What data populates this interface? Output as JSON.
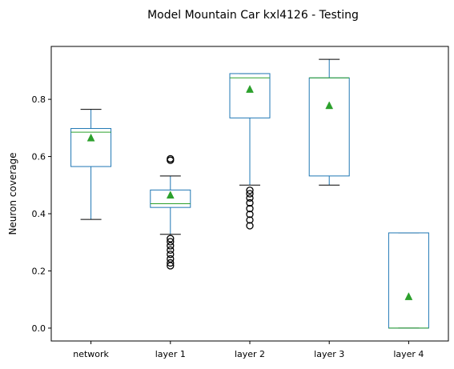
{
  "chart_data": {
    "type": "box",
    "title": "Model Mountain Car kxl4126 - Testing",
    "xlabel": "",
    "ylabel": "Neuron coverage",
    "ylim": [
      -0.045,
      0.985
    ],
    "yticks": [
      0.0,
      0.2,
      0.4,
      0.6,
      0.8
    ],
    "ytick_labels": [
      "0.0",
      "0.2",
      "0.4",
      "0.6",
      "0.8"
    ],
    "grid": false,
    "legend": "none",
    "categories": [
      "network",
      "layer 1",
      "layer 2",
      "layer 3",
      "layer 4"
    ],
    "boxes": [
      {
        "category": "network",
        "whisker_low": 0.38,
        "q1": 0.565,
        "median": 0.685,
        "q3": 0.698,
        "whisker_high": 0.765,
        "mean": 0.665,
        "outliers": []
      },
      {
        "category": "layer 1",
        "whisker_low": 0.328,
        "q1": 0.422,
        "median": 0.435,
        "q3": 0.483,
        "whisker_high": 0.532,
        "mean": 0.465,
        "outliers": [
          0.218,
          0.228,
          0.242,
          0.258,
          0.273,
          0.288,
          0.302,
          0.313,
          0.587,
          0.592
        ]
      },
      {
        "category": "layer 2",
        "whisker_low": 0.5,
        "q1": 0.735,
        "median": 0.875,
        "q3": 0.89,
        "whisker_high": 0.89,
        "mean": 0.835,
        "outliers": [
          0.358,
          0.378,
          0.398,
          0.418,
          0.438,
          0.455,
          0.47,
          0.482
        ]
      },
      {
        "category": "layer 3",
        "whisker_low": 0.5,
        "q1": 0.532,
        "median": 0.875,
        "q3": 0.875,
        "whisker_high": 0.94,
        "mean": 0.778,
        "outliers": []
      },
      {
        "category": "layer 4",
        "whisker_low": 0.0,
        "q1": 0.0,
        "median": 0.0,
        "q3": 0.333,
        "whisker_high": 0.333,
        "mean": 0.11,
        "outliers": []
      }
    ],
    "colors": {
      "box": "#1f77b4",
      "median": "#2ca02c",
      "mean": "#2ca02c",
      "whisker_cap": "#000000",
      "outlier": "#000000",
      "axes": "#000000"
    }
  }
}
